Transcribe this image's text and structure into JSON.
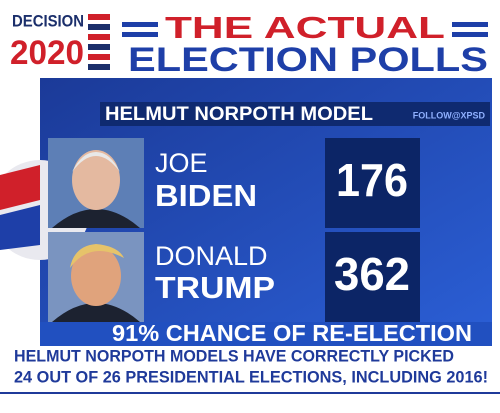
{
  "logo": {
    "line1": "DECISION",
    "line2": "2020"
  },
  "header": {
    "line1": "THE ACTUAL",
    "line2": "ELECTION POLLS"
  },
  "subheader": {
    "title": "HELMUT NORPOTH MODEL",
    "credit": "FOLLOW@XPSD"
  },
  "rows": [
    {
      "first": "JOE",
      "last": "BIDEN",
      "value": 176
    },
    {
      "first": "DONALD",
      "last": "TRUMP",
      "value": 362
    }
  ],
  "banner": "91% CHANCE OF RE-ELECTION",
  "footer": {
    "line1": "HELMUT NORPOTH MODELS HAVE CORRECTLY PICKED",
    "line2": "24 OUT OF 26 PRESIDENTIAL ELECTIONS, INCLUDING 2016!"
  }
}
